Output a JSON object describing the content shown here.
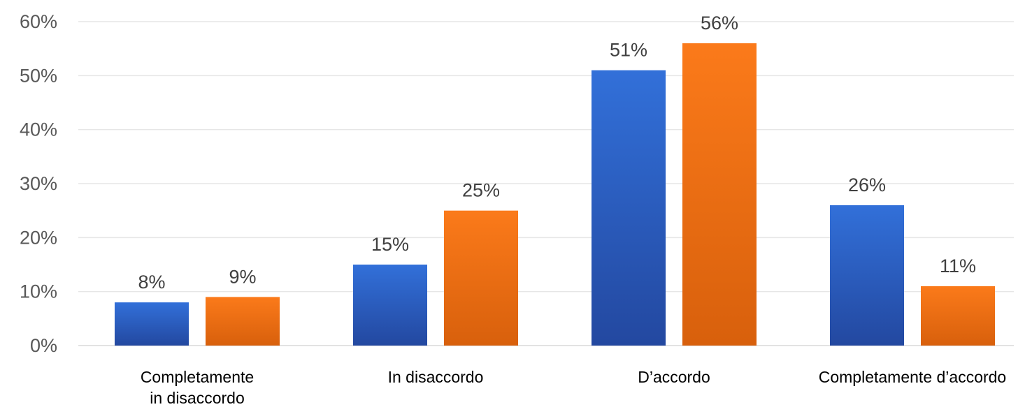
{
  "chart_data": {
    "type": "bar",
    "title": "",
    "xlabel": "",
    "ylabel": "",
    "categories": [
      [
        "Completamente",
        "in disaccordo"
      ],
      [
        "In disaccordo"
      ],
      [
        "D’accordo"
      ],
      [
        "Completamente d’accordo"
      ]
    ],
    "series": [
      {
        "values": [
          8,
          15,
          51,
          26
        ],
        "labels": [
          "8%",
          "15%",
          "51%",
          "26%"
        ],
        "color": "#2f6ad4"
      },
      {
        "values": [
          9,
          25,
          56,
          11
        ],
        "labels": [
          "9%",
          "25%",
          "56%",
          "11%"
        ],
        "color": "#f07316"
      }
    ],
    "ylim": [
      0,
      60
    ],
    "yticks": [
      {
        "value": 0,
        "label": "0%"
      },
      {
        "value": 10,
        "label": "10%"
      },
      {
        "value": 20,
        "label": "20%"
      },
      {
        "value": 30,
        "label": "30%"
      },
      {
        "value": 40,
        "label": "40%"
      },
      {
        "value": 50,
        "label": "50%"
      },
      {
        "value": 60,
        "label": "60%"
      }
    ],
    "grid": true,
    "legend": "none"
  }
}
